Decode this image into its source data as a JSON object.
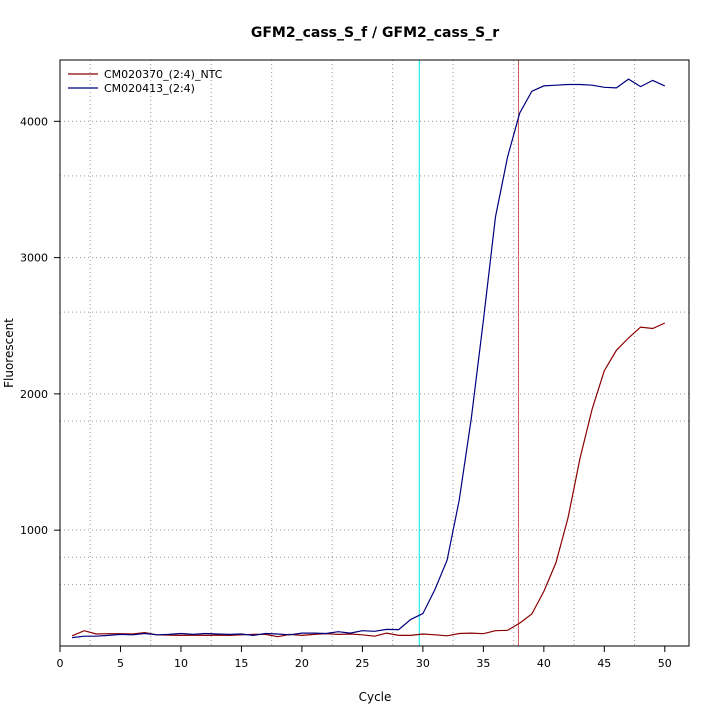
{
  "chart_data": {
    "type": "line",
    "title": "GFM2_cass_S_f / GFM2_cass_S_r",
    "xlabel": "Cycle",
    "ylabel": "Fluorescent",
    "xlim": [
      0,
      52
    ],
    "ylim": [
      150,
      4450
    ],
    "x_ticks": [
      0,
      5,
      10,
      15,
      20,
      25,
      30,
      35,
      40,
      45,
      50
    ],
    "y_ticks": [
      1000,
      2000,
      3000,
      4000
    ],
    "x_tick_labels": [
      "0",
      "5",
      "10",
      "15",
      "20",
      "25",
      "30",
      "35",
      "40",
      "45",
      "50"
    ],
    "y_tick_labels": [
      "1000",
      "2000",
      "3000",
      "4000"
    ],
    "x_grid": [
      2.5,
      7.5,
      12.5,
      17.5,
      22.5,
      27.5,
      32.5,
      37.5,
      42.5,
      47.5
    ],
    "y_grid": [
      600,
      800,
      1000,
      1800,
      2000,
      2600,
      3000,
      3600,
      4000
    ],
    "grid": true,
    "legend_position": "top-left",
    "x": [
      1,
      2,
      3,
      4,
      5,
      6,
      7,
      8,
      9,
      10,
      11,
      12,
      13,
      14,
      15,
      16,
      17,
      18,
      19,
      20,
      21,
      22,
      23,
      24,
      25,
      26,
      27,
      28,
      29,
      30,
      31,
      32,
      33,
      34,
      35,
      36,
      37,
      38,
      39,
      40,
      41,
      42,
      43,
      44,
      45,
      46,
      47,
      48,
      49,
      50
    ],
    "series": [
      {
        "name": "CM020370_(2:4)_NTC",
        "color": "#8b0000",
        "values": [
          225,
          262,
          238,
          240,
          240,
          238,
          248,
          232,
          230,
          228,
          230,
          228,
          230,
          228,
          232,
          235,
          235,
          218,
          235,
          228,
          235,
          240,
          235,
          238,
          232,
          222,
          245,
          228,
          228,
          238,
          232,
          225,
          242,
          245,
          240,
          262,
          265,
          318,
          385,
          550,
          760,
          1090,
          1530,
          1890,
          2170,
          2320,
          2410,
          2490,
          2480,
          2520
        ]
      },
      {
        "name": "CM020413_(2:4)",
        "color": "#000080",
        "values": [
          212,
          222,
          222,
          228,
          235,
          232,
          242,
          232,
          235,
          242,
          235,
          242,
          238,
          235,
          238,
          228,
          242,
          238,
          232,
          245,
          245,
          242,
          255,
          245,
          262,
          258,
          272,
          270,
          345,
          388,
          565,
          780,
          1220,
          1820,
          2540,
          3300,
          3740,
          4060,
          4220,
          4260,
          4265,
          4270,
          4270,
          4265,
          4250,
          4245,
          4310,
          4255,
          4300,
          4260
        ]
      }
    ],
    "vertical_lines": [
      {
        "x": 29.7,
        "color": "#00e5ee"
      },
      {
        "x": 37.9,
        "color": "#cd5c5c"
      }
    ]
  }
}
